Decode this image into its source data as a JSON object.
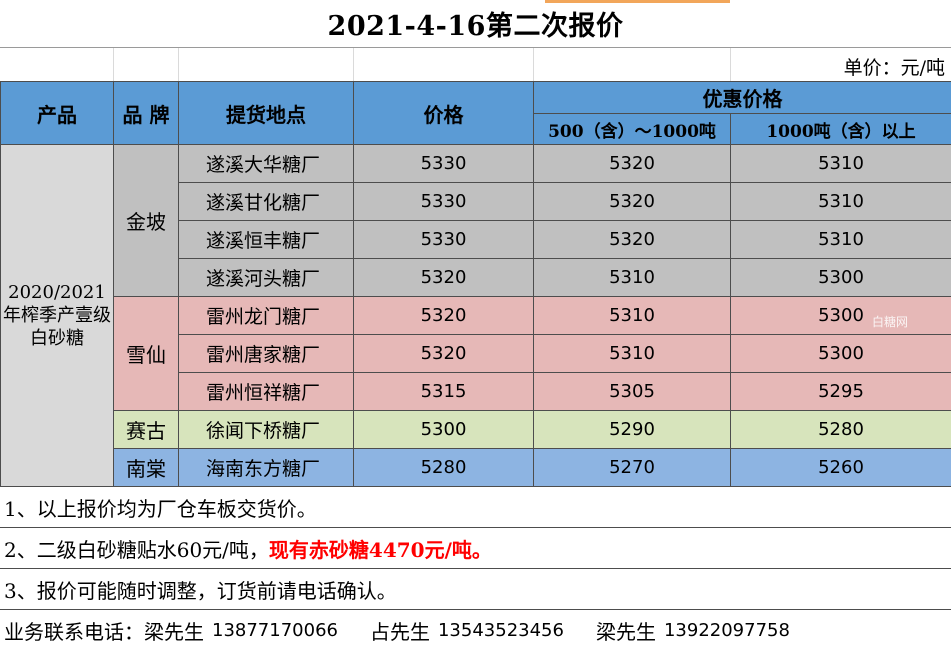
{
  "title": "2021-4-16第二次报价",
  "unit": "单价：元/吨",
  "header": {
    "product": "产品",
    "brand": "品 牌",
    "location": "提货地点",
    "price": "价格",
    "discount": "优惠价格",
    "tier1": "500（含）～1000吨",
    "tier2": "1000吨（含）以上"
  },
  "product_label": "2020/2021年榨季产壹级白砂糖",
  "groups": [
    {
      "brand": "金坡",
      "color": "#c0c0c0",
      "rows": [
        {
          "plant": "遂溪大华糖厂",
          "price": "5330",
          "tier1": "5320",
          "tier2": "5310"
        },
        {
          "plant": "遂溪甘化糖厂",
          "price": "5330",
          "tier1": "5320",
          "tier2": "5310"
        },
        {
          "plant": "遂溪恒丰糖厂",
          "price": "5330",
          "tier1": "5320",
          "tier2": "5310"
        },
        {
          "plant": "遂溪河头糖厂",
          "price": "5320",
          "tier1": "5310",
          "tier2": "5300"
        }
      ]
    },
    {
      "brand": "雪仙",
      "color": "#e6b8b7",
      "rows": [
        {
          "plant": "雷州龙门糖厂",
          "price": "5320",
          "tier1": "5310",
          "tier2": "5300"
        },
        {
          "plant": "雷州唐家糖厂",
          "price": "5320",
          "tier1": "5310",
          "tier2": "5300"
        },
        {
          "plant": "雷州恒祥糖厂",
          "price": "5315",
          "tier1": "5305",
          "tier2": "5295"
        }
      ]
    },
    {
      "brand": "赛古",
      "color": "#d7e4bc",
      "rows": [
        {
          "plant": "徐闻下桥糖厂",
          "price": "5300",
          "tier1": "5290",
          "tier2": "5280"
        }
      ]
    },
    {
      "brand": "南棠",
      "color": "#8db4e2",
      "rows": [
        {
          "plant": "海南东方糖厂",
          "price": "5280",
          "tier1": "5270",
          "tier2": "5260"
        }
      ]
    }
  ],
  "watermark": "白糖网",
  "notes": {
    "n1": "1、以上报价均为厂仓车板交货价。",
    "n2_plain": "2、二级白砂糖贴水60元/吨，",
    "n2_highlight": "现有赤砂糖4470元/吨。",
    "n3": "3、报价可能随时调整，订货前请电话确认。"
  },
  "contact": {
    "label": "业务联系电话：梁先生",
    "phone1": "13877170066",
    "name2": "占先生",
    "phone2": "13543523456",
    "name3": "梁先生",
    "phone3": "13922097758"
  }
}
